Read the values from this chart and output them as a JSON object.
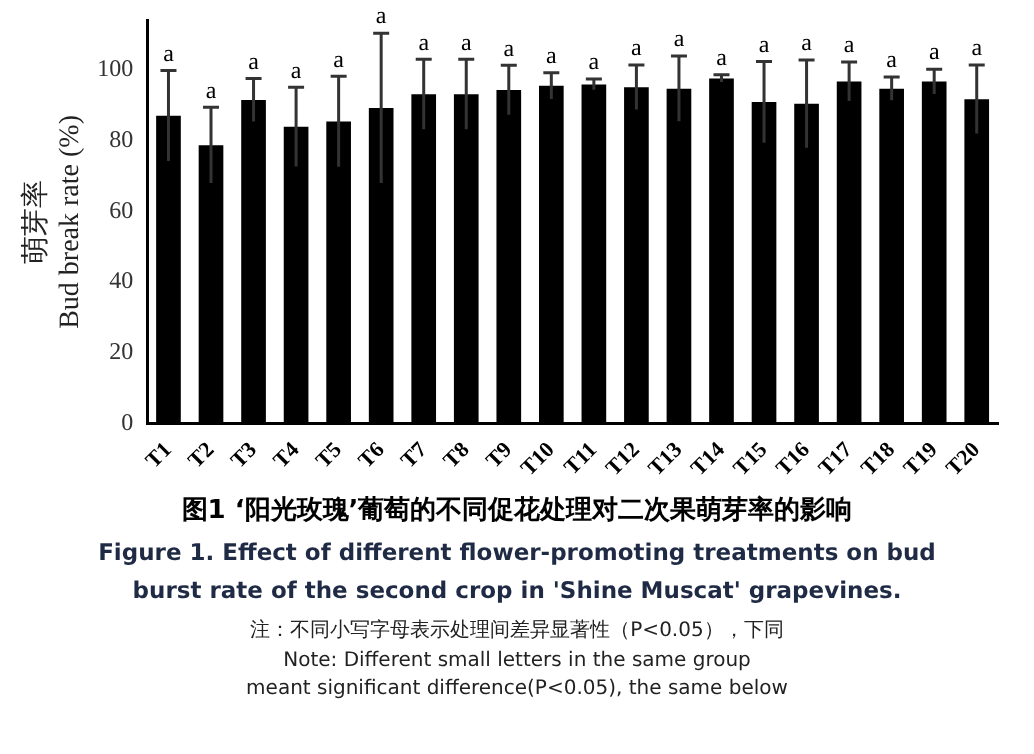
{
  "chart_data": {
    "type": "bar",
    "title": "图1 ‘阳光玫瑰’葡萄的不同促花处理对二次果萌芽率的影响",
    "subtitle": "Figure 1. Effect of different flower-promoting treatments on bud burst rate of the second crop in 'Shine Muscat' grapevines.",
    "ylabel": "萌芽率\nBud break rate (%)",
    "categories": [
      "T1",
      "T2",
      "T3",
      "T4",
      "T5",
      "T6",
      "T7",
      "T8",
      "T9",
      "T10",
      "T11",
      "T12",
      "T13",
      "T14",
      "T15",
      "T16",
      "T17",
      "T18",
      "T19",
      "T20"
    ],
    "values": [
      87,
      78.7,
      91.5,
      83.9,
      85.4,
      89.2,
      93.1,
      93.1,
      94.3,
      95.5,
      95.9,
      95.1,
      94.7,
      97.6,
      90.9,
      90.4,
      96.7,
      94.7,
      96.7,
      91.7
    ],
    "errors": [
      12.8,
      10.7,
      6.1,
      11.2,
      12.8,
      21.2,
      9.9,
      9.9,
      7,
      3.7,
      1.5,
      6.3,
      9.2,
      1,
      11.5,
      12.4,
      5.5,
      3.3,
      3.5,
      9.7
    ],
    "color": "#000000",
    "ylim": [
      0,
      114
    ],
    "yticks": [
      0,
      20,
      40,
      60,
      80,
      100
    ],
    "grid": false,
    "legend": false,
    "annotations": [
      {
        "text": "a",
        "x": "T1",
        "y": 99.8
      },
      {
        "text": "a",
        "x": "T2",
        "y": 89.4
      },
      {
        "text": "a",
        "x": "T3",
        "y": 97.6
      },
      {
        "text": "a",
        "x": "T4",
        "y": 95.1
      },
      {
        "text": "a",
        "x": "T5",
        "y": 98.2
      },
      {
        "text": "a",
        "x": "T6",
        "y": 110.4
      },
      {
        "text": "a",
        "x": "T7",
        "y": 103
      },
      {
        "text": "a",
        "x": "T8",
        "y": 103
      },
      {
        "text": "a",
        "x": "T9",
        "y": 101.3
      },
      {
        "text": "a",
        "x": "T10",
        "y": 99.2
      },
      {
        "text": "a",
        "x": "T11",
        "y": 97.4
      },
      {
        "text": "a",
        "x": "T12",
        "y": 101.4
      },
      {
        "text": "a",
        "x": "T13",
        "y": 103.9
      },
      {
        "text": "a",
        "x": "T14",
        "y": 98.6
      },
      {
        "text": "a",
        "x": "T15",
        "y": 102.4
      },
      {
        "text": "a",
        "x": "T16",
        "y": 102.8
      },
      {
        "text": "a",
        "x": "T17",
        "y": 102.2
      },
      {
        "text": "a",
        "x": "T18",
        "y": 98
      },
      {
        "text": "a",
        "x": "T19",
        "y": 100.2
      },
      {
        "text": "a",
        "x": "T20",
        "y": 101.4
      },
      "注：不同小写字母表示处理间差异显著性（P<0.05），下同",
      "Note: Different small letters in the same group",
      "meant significant difference(P<0.05), the same below"
    ]
  }
}
